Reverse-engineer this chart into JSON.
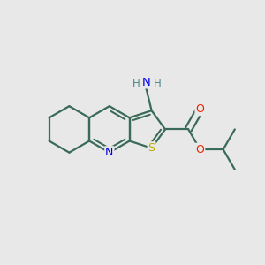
{
  "bg_color": "#e8e8e8",
  "bond_color": "#3a6b58",
  "bond_lw": 1.6,
  "atom_colors": {
    "N": "#0000ee",
    "S": "#bbaa00",
    "O": "#ee2200",
    "H": "#4a8888",
    "C": "#3a6b58"
  },
  "figsize": [
    3.0,
    3.0
  ],
  "dpi": 100,
  "xlim": [
    -1.95,
    1.75
  ],
  "ylim": [
    -1.0,
    1.05
  ]
}
